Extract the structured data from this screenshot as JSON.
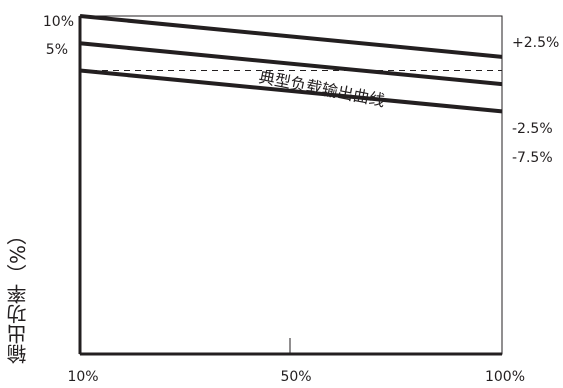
{
  "chart_data": {
    "type": "line",
    "ylabel": "输出功率（%）",
    "xlabel": "",
    "x_ticks": [
      "10%",
      "50%",
      "100%"
    ],
    "left_y_ticks": [
      "10%",
      "5%"
    ],
    "annotation": "典型负载输出曲线",
    "x": [
      10,
      100
    ],
    "series": [
      {
        "values": [
          10,
          2.5
        ],
        "end_label": "+2.5%",
        "style": "solid"
      },
      {
        "values": [
          5,
          -2.5
        ],
        "end_label": "-2.5%",
        "style": "solid"
      },
      {
        "values": [
          0,
          -7.5
        ],
        "end_label": "-7.5%",
        "style": "solid"
      },
      {
        "values": [
          0,
          0
        ],
        "end_label": "",
        "style": "dashed"
      }
    ],
    "xlim": [
      10,
      100
    ],
    "ylim": [
      -52,
      10
    ],
    "grid": false
  }
}
